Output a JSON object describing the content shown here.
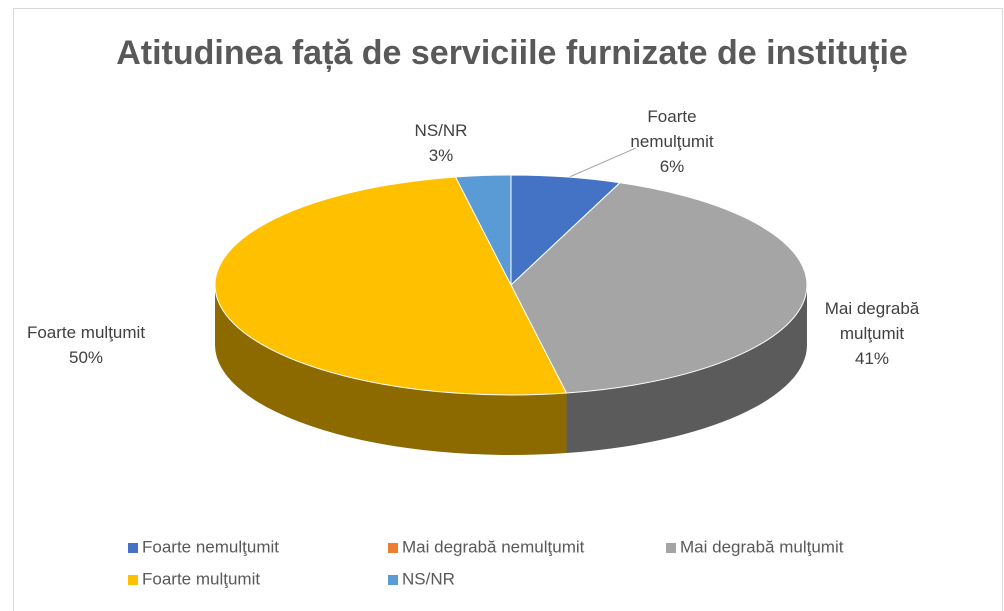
{
  "chart_data": {
    "type": "pie",
    "title": "Atitudinea față de serviciile furnizate de instituție",
    "categories": [
      "Foarte nemulţumit",
      "Mai degrabă nemulţumit",
      "Mai degrabă mulţumit",
      "Foarte mulţumit",
      "NS/NR"
    ],
    "values": [
      6,
      0,
      41,
      50,
      3
    ],
    "value_labels": [
      "6%",
      null,
      "41%",
      "50%",
      "3%"
    ],
    "colors": [
      "#4472c4",
      "#ed7d31",
      "#a5a5a5",
      "#ffc000",
      "#5b9bd5"
    ],
    "legend": "bottom"
  }
}
